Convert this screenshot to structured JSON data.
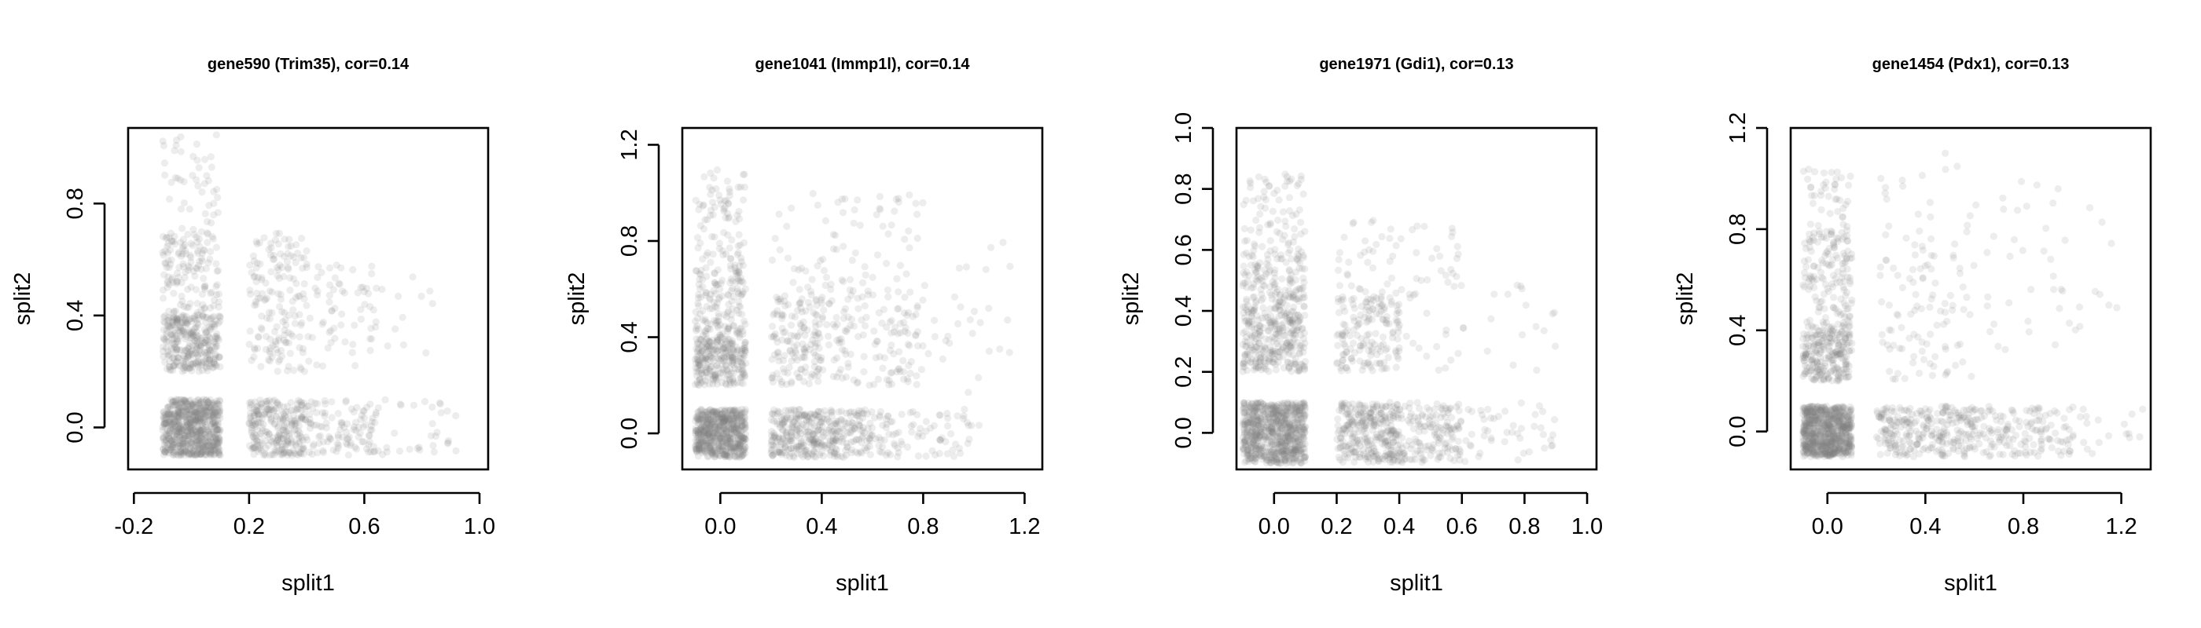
{
  "chart_data": [
    {
      "type": "scatter",
      "title": "gene590 (Trim35), cor=0.14",
      "xlabel": "split1",
      "ylabel": "split2",
      "xlim": [
        -0.22,
        1.03
      ],
      "ylim": [
        -0.15,
        1.07
      ],
      "xticks": [
        -0.2,
        0.2,
        0.6,
        1.0
      ],
      "xtick_labels": [
        "-0.2",
        "0.2",
        "0.6",
        "1.0"
      ],
      "yticks": [
        0.0,
        0.4,
        0.8
      ],
      "ytick_labels": [
        "0.0",
        "0.4",
        "0.8"
      ],
      "point_color": "#808080",
      "point_opacity": 0.14,
      "clusters": [
        {
          "x": [
            -0.1,
            0.1
          ],
          "y": [
            -0.1,
            0.1
          ],
          "n": 700
        },
        {
          "x": [
            -0.1,
            0.1
          ],
          "y": [
            0.2,
            0.4
          ],
          "n": 320
        },
        {
          "x": [
            -0.1,
            0.1
          ],
          "y": [
            0.4,
            0.7
          ],
          "n": 140
        },
        {
          "x": [
            -0.1,
            0.1
          ],
          "y": [
            0.7,
            1.05
          ],
          "n": 45
        },
        {
          "x": [
            0.2,
            0.4
          ],
          "y": [
            -0.1,
            0.1
          ],
          "n": 260
        },
        {
          "x": [
            0.4,
            0.65
          ],
          "y": [
            -0.1,
            0.1
          ],
          "n": 110
        },
        {
          "x": [
            0.65,
            0.92
          ],
          "y": [
            -0.1,
            0.1
          ],
          "n": 30
        },
        {
          "x": [
            0.2,
            0.4
          ],
          "y": [
            0.2,
            0.7
          ],
          "n": 160
        },
        {
          "x": [
            0.4,
            0.65
          ],
          "y": [
            0.2,
            0.6
          ],
          "n": 60
        },
        {
          "x": [
            0.6,
            0.9
          ],
          "y": [
            0.25,
            0.55
          ],
          "n": 15
        }
      ]
    },
    {
      "type": "scatter",
      "title": "gene1041 (Immp1l), cor=0.14",
      "xlabel": "split1",
      "ylabel": "split2",
      "xlim": [
        -0.15,
        1.27
      ],
      "ylim": [
        -0.15,
        1.27
      ],
      "xticks": [
        0.0,
        0.4,
        0.8,
        1.2
      ],
      "xtick_labels": [
        "0.0",
        "0.4",
        "0.8",
        "1.2"
      ],
      "yticks": [
        0.0,
        0.4,
        0.8,
        1.2
      ],
      "ytick_labels": [
        "0.0",
        "0.4",
        "0.8",
        "1.2"
      ],
      "point_color": "#808080",
      "point_opacity": 0.14,
      "clusters": [
        {
          "x": [
            -0.1,
            0.1
          ],
          "y": [
            -0.1,
            0.1
          ],
          "n": 600
        },
        {
          "x": [
            -0.1,
            0.1
          ],
          "y": [
            0.2,
            0.4
          ],
          "n": 260
        },
        {
          "x": [
            -0.1,
            0.1
          ],
          "y": [
            0.4,
            0.7
          ],
          "n": 150
        },
        {
          "x": [
            -0.1,
            0.1
          ],
          "y": [
            0.7,
            1.1
          ],
          "n": 80
        },
        {
          "x": [
            0.2,
            0.4
          ],
          "y": [
            -0.1,
            0.1
          ],
          "n": 230
        },
        {
          "x": [
            0.4,
            0.6
          ],
          "y": [
            -0.1,
            0.1
          ],
          "n": 150
        },
        {
          "x": [
            0.6,
            1.0
          ],
          "y": [
            -0.1,
            0.1
          ],
          "n": 80
        },
        {
          "x": [
            0.2,
            0.4
          ],
          "y": [
            0.2,
            0.6
          ],
          "n": 150
        },
        {
          "x": [
            0.4,
            0.8
          ],
          "y": [
            0.2,
            0.6
          ],
          "n": 140
        },
        {
          "x": [
            0.2,
            0.8
          ],
          "y": [
            0.6,
            1.0
          ],
          "n": 70
        },
        {
          "x": [
            0.8,
            1.15
          ],
          "y": [
            0.0,
            0.8
          ],
          "n": 30
        }
      ]
    },
    {
      "type": "scatter",
      "title": "gene1971 (Gdi1), cor=0.13",
      "xlabel": "split1",
      "ylabel": "split2",
      "xlim": [
        -0.12,
        1.03
      ],
      "ylim": [
        -0.12,
        1.0
      ],
      "xticks": [
        0.0,
        0.2,
        0.4,
        0.6,
        0.8,
        1.0
      ],
      "xtick_labels": [
        "0.0",
        "0.2",
        "0.4",
        "0.6",
        "0.8",
        "1.0"
      ],
      "yticks": [
        0.0,
        0.2,
        0.4,
        0.6,
        0.8,
        1.0
      ],
      "ytick_labels": [
        "0.0",
        "0.2",
        "0.4",
        "0.6",
        "0.8",
        "1.0"
      ],
      "point_color": "#808080",
      "point_opacity": 0.14,
      "clusters": [
        {
          "x": [
            -0.1,
            0.1
          ],
          "y": [
            -0.1,
            0.1
          ],
          "n": 750
        },
        {
          "x": [
            -0.1,
            0.1
          ],
          "y": [
            0.2,
            0.4
          ],
          "n": 280
        },
        {
          "x": [
            -0.1,
            0.1
          ],
          "y": [
            0.4,
            0.6
          ],
          "n": 160
        },
        {
          "x": [
            -0.1,
            0.1
          ],
          "y": [
            0.6,
            0.85
          ],
          "n": 70
        },
        {
          "x": [
            0.2,
            0.4
          ],
          "y": [
            -0.1,
            0.1
          ],
          "n": 300
        },
        {
          "x": [
            0.4,
            0.6
          ],
          "y": [
            -0.1,
            0.1
          ],
          "n": 150
        },
        {
          "x": [
            0.6,
            0.9
          ],
          "y": [
            -0.1,
            0.1
          ],
          "n": 45
        },
        {
          "x": [
            0.2,
            0.4
          ],
          "y": [
            0.2,
            0.45
          ],
          "n": 160
        },
        {
          "x": [
            0.2,
            0.6
          ],
          "y": [
            0.45,
            0.7
          ],
          "n": 60
        },
        {
          "x": [
            0.4,
            0.9
          ],
          "y": [
            0.2,
            0.55
          ],
          "n": 35
        }
      ]
    },
    {
      "type": "scatter",
      "title": "gene1454 (Pdx1), cor=0.13",
      "xlabel": "split1",
      "ylabel": "split2",
      "xlim": [
        -0.15,
        1.32
      ],
      "ylim": [
        -0.15,
        1.2
      ],
      "xticks": [
        0.0,
        0.4,
        0.8,
        1.2
      ],
      "xtick_labels": [
        "0.0",
        "0.4",
        "0.8",
        "1.2"
      ],
      "yticks": [
        0.0,
        0.4,
        0.8,
        1.2
      ],
      "ytick_labels": [
        "0.0",
        "0.4",
        "0.8",
        "1.2"
      ],
      "point_color": "#808080",
      "point_opacity": 0.14,
      "clusters": [
        {
          "x": [
            -0.1,
            0.1
          ],
          "y": [
            -0.1,
            0.1
          ],
          "n": 750
        },
        {
          "x": [
            -0.1,
            0.1
          ],
          "y": [
            0.2,
            0.4
          ],
          "n": 230
        },
        {
          "x": [
            -0.1,
            0.1
          ],
          "y": [
            0.4,
            0.8
          ],
          "n": 160
        },
        {
          "x": [
            -0.1,
            0.1
          ],
          "y": [
            0.8,
            1.05
          ],
          "n": 40
        },
        {
          "x": [
            0.2,
            0.6
          ],
          "y": [
            -0.1,
            0.1
          ],
          "n": 260
        },
        {
          "x": [
            0.6,
            1.0
          ],
          "y": [
            -0.1,
            0.1
          ],
          "n": 140
        },
        {
          "x": [
            1.0,
            1.3
          ],
          "y": [
            -0.1,
            0.1
          ],
          "n": 20
        },
        {
          "x": [
            0.2,
            0.6
          ],
          "y": [
            0.2,
            0.7
          ],
          "n": 90
        },
        {
          "x": [
            0.6,
            1.2
          ],
          "y": [
            0.3,
            1.0
          ],
          "n": 45
        },
        {
          "x": [
            0.2,
            0.6
          ],
          "y": [
            0.7,
            1.1
          ],
          "n": 25
        }
      ]
    }
  ]
}
